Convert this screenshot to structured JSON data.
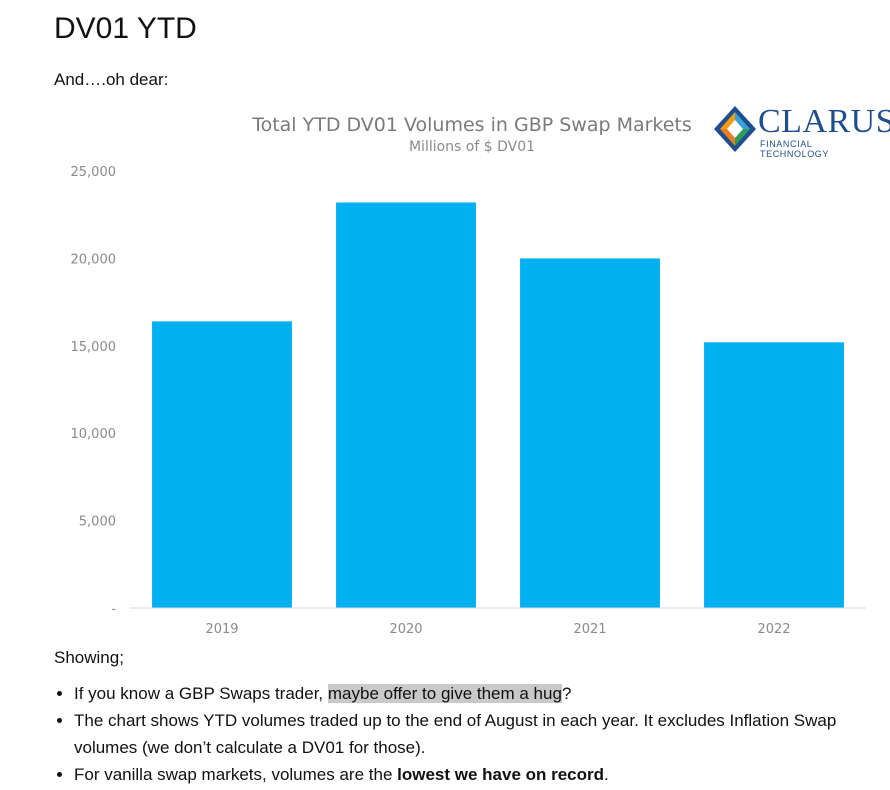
{
  "heading": "DV01 YTD",
  "intro": "And….oh dear:",
  "logo": {
    "word": "CLARUS",
    "tagline": "FINANCIAL TECHNOLOGY",
    "colors": [
      "#f39c12",
      "#1f4e8c",
      "#3aa0d8",
      "#2e9d5a"
    ]
  },
  "chart_data": {
    "type": "bar",
    "title": "Total YTD DV01 Volumes in GBP Swap Markets",
    "subtitle": "Millions of $ DV01",
    "categories": [
      "2019",
      "2020",
      "2021",
      "2022"
    ],
    "values": [
      16400,
      23200,
      20000,
      15200
    ],
    "y_ticks": [
      0,
      5000,
      10000,
      15000,
      20000,
      25000
    ],
    "y_tick_labels": [
      "-",
      "5,000",
      "10,000",
      "15,000",
      "20,000",
      "25,000"
    ],
    "ylim": [
      0,
      25000
    ],
    "bar_color": "#00b0f0",
    "grid": false
  },
  "text": {
    "showing": "Showing;",
    "bullet1_pre": "If you know a GBP Swaps trader, ",
    "bullet1_hl": "maybe offer to give them a hug",
    "bullet1_post": "?",
    "bullet2": "The chart shows YTD volumes traded up to the end of August in each year. It excludes Inflation Swap volumes (we don’t calculate a DV01 for those).",
    "bullet3_pre": "For vanilla swap markets, volumes are the ",
    "bullet3_bold": "lowest we have on record",
    "bullet3_post": "."
  }
}
